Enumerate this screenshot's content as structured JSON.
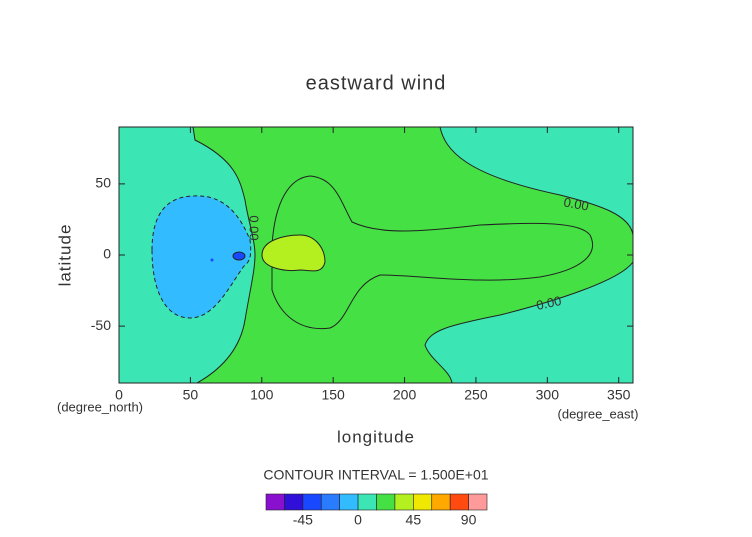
{
  "chart_data": {
    "type": "contour",
    "title": "eastward wind",
    "x_label": "longitude",
    "y_label": "latitude",
    "x_unit": "(degree_east)",
    "y_unit": "(degree_north)",
    "xlim": [
      0,
      360
    ],
    "ylim": [
      -90,
      90
    ],
    "xticks": [
      0,
      50,
      100,
      150,
      200,
      250,
      300,
      350
    ],
    "yticks": [
      -50,
      0,
      50
    ],
    "contour_labels": [
      "0.00",
      "0.00",
      "0.00"
    ],
    "contour_interval_label": "CONTOUR INTERVAL = 1.500E+01",
    "colorbar": {
      "levels": [
        -75,
        -60,
        -45,
        -30,
        -15,
        0,
        15,
        30,
        45,
        60,
        75,
        90,
        105
      ],
      "colors": [
        "#8a10d0",
        "#3010d8",
        "#1848ff",
        "#2a7cff",
        "#33bbff",
        "#3ce6b4",
        "#44e044",
        "#b4f020",
        "#f0e800",
        "#ffa800",
        "#ff4a10",
        "#ff9a9a"
      ],
      "ticks": [
        -45,
        0,
        45,
        90
      ]
    }
  }
}
